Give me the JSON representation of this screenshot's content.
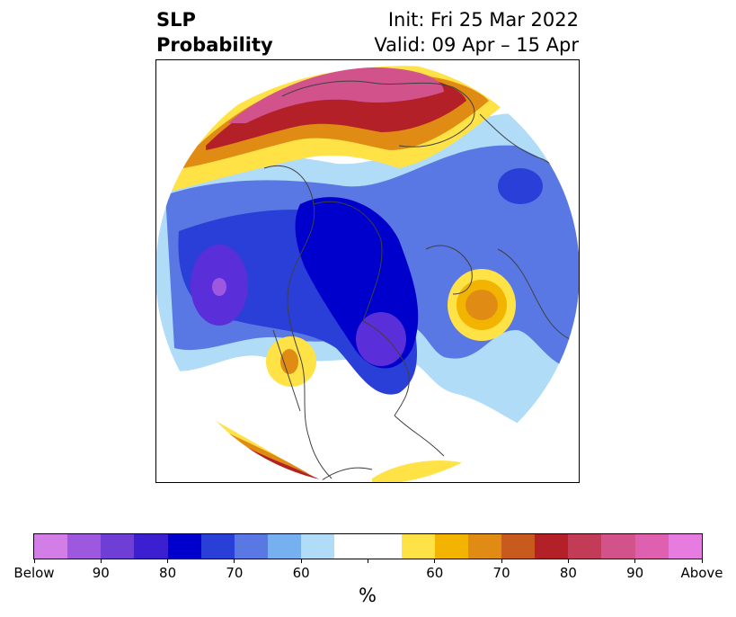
{
  "title": {
    "left_line1": "SLP",
    "left_line2": "Probability",
    "right_line1": "Init: Fri 25 Mar 2022",
    "right_line2": "Valid: 09 Apr – 15 Apr"
  },
  "map": {
    "type": "polar-stereographic probability map",
    "region": "Northern Hemisphere",
    "colors": {
      "below_strong": "#0000cc",
      "below_mid": "#5a78e4",
      "below_weak": "#b0dcf8",
      "above_weak": "#ffe246",
      "above_mid": "#e08c14",
      "above_strong": "#b42028",
      "above_max": "#d8529e",
      "coastline": "#404040"
    }
  },
  "colorbar": {
    "colors": [
      "#d27ee6",
      "#9e58e0",
      "#6e3ed6",
      "#3c1fd0",
      "#0000cc",
      "#2a3ed8",
      "#5a78e4",
      "#76b0f0",
      "#b0dcf8",
      "#ffffff",
      "#ffffff",
      "#ffe246",
      "#f2b400",
      "#e08c14",
      "#c85a1e",
      "#b42028",
      "#c23c58",
      "#d2528c",
      "#e060b0",
      "#e67ce0"
    ],
    "tick_labels": [
      "Below",
      "90",
      "80",
      "70",
      "60",
      "",
      "60",
      "70",
      "80",
      "90",
      "Above"
    ],
    "unit": "%"
  }
}
